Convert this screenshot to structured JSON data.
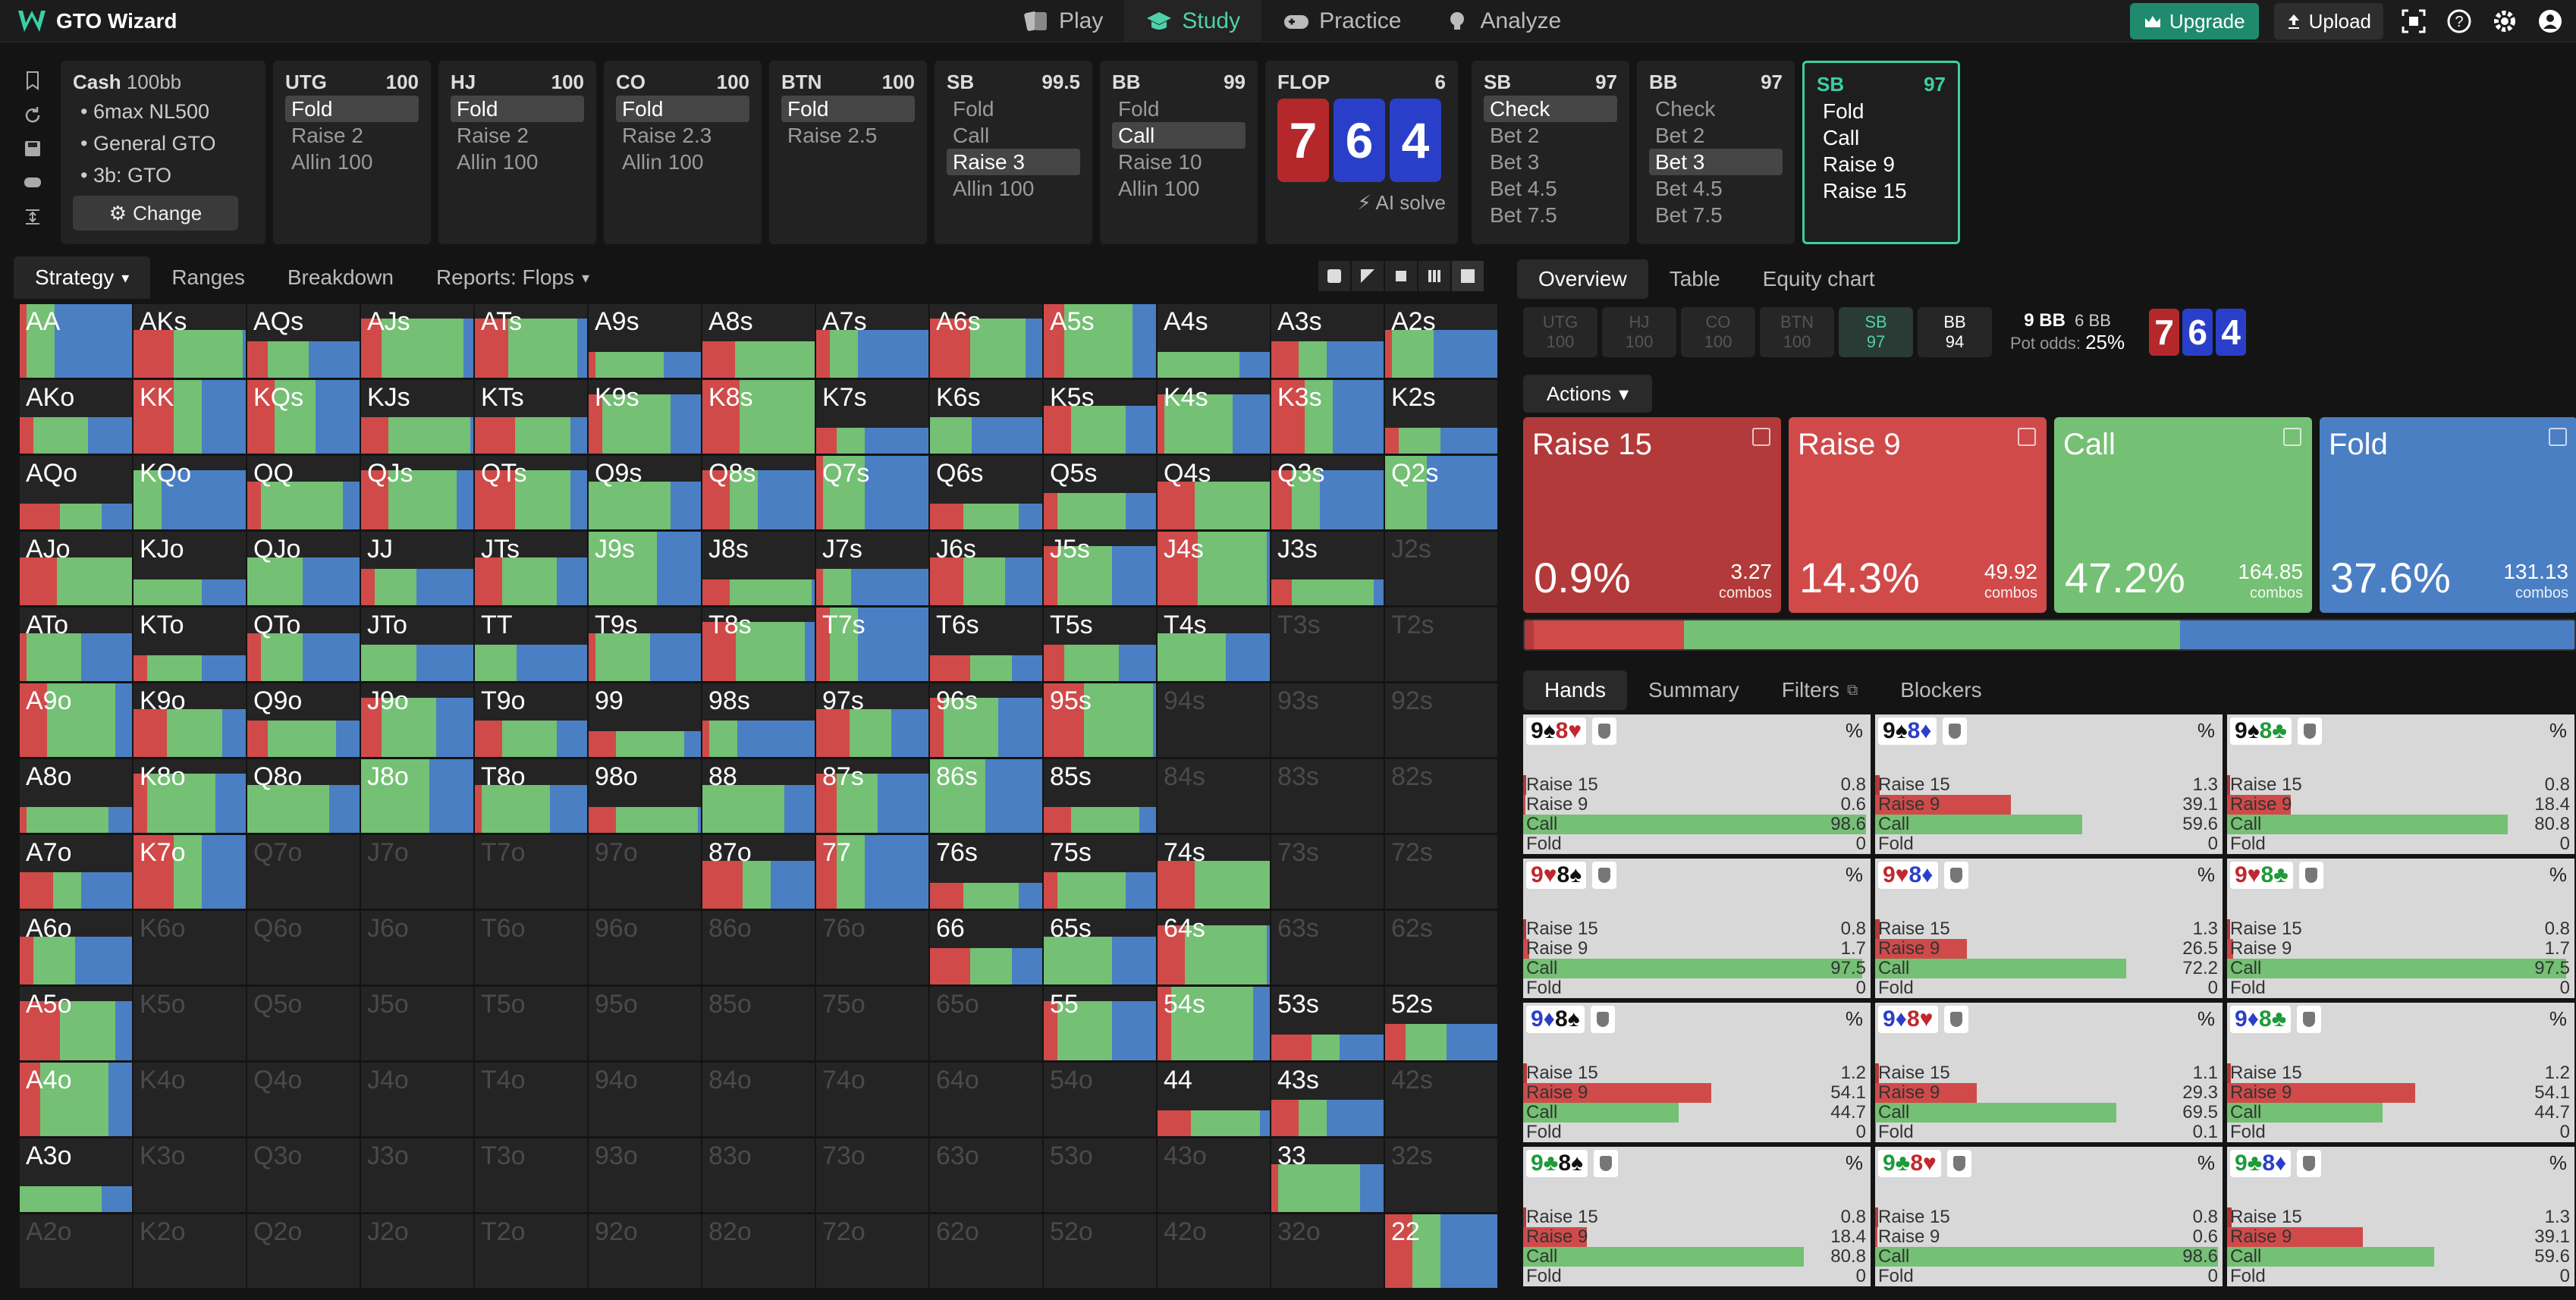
{
  "app": {
    "title": "GTO Wizard"
  },
  "nav": {
    "tabs": [
      {
        "label": "Play",
        "icon": "cards-icon"
      },
      {
        "label": "Study",
        "icon": "graduation-cap-icon"
      },
      {
        "label": "Practice",
        "icon": "gamepad-icon"
      },
      {
        "label": "Analyze",
        "icon": "lightbulb-icon"
      }
    ],
    "active": 1,
    "upgrade": "Upgrade",
    "upload": "Upload"
  },
  "colors": {
    "raise_big": "#b33a3a",
    "raise": "#d04a4a",
    "call": "#74c074",
    "fold": "#4a7fc4",
    "accent": "#3bd0a4"
  },
  "line": {
    "cash": {
      "title": "Cash",
      "stack": "100bb",
      "items": [
        "• 6max NL500",
        "• General GTO",
        "• 3b: GTO"
      ],
      "change": "Change"
    },
    "positions": [
      {
        "pos": "UTG",
        "stack": "100",
        "options": [
          "Fold",
          "Raise 2",
          "Allin 100"
        ],
        "sel": 0
      },
      {
        "pos": "HJ",
        "stack": "100",
        "options": [
          "Fold",
          "Raise 2",
          "Allin 100"
        ],
        "sel": 0
      },
      {
        "pos": "CO",
        "stack": "100",
        "options": [
          "Fold",
          "Raise 2.3",
          "Allin 100"
        ],
        "sel": 0
      },
      {
        "pos": "BTN",
        "stack": "100",
        "options": [
          "Fold",
          "Raise 2.5"
        ],
        "sel": 0
      },
      {
        "pos": "SB",
        "stack": "99.5",
        "options": [
          "Fold",
          "Call",
          "Raise 3",
          "Allin 100"
        ],
        "sel": 2
      },
      {
        "pos": "BB",
        "stack": "99",
        "options": [
          "Fold",
          "Call",
          "Raise 10",
          "Allin 100"
        ],
        "sel": 1
      }
    ],
    "flop": {
      "label": "FLOP",
      "pot": "6",
      "cards": [
        "7",
        "6",
        "4"
      ],
      "ai": "AI solve"
    },
    "post": [
      {
        "pos": "SB",
        "stack": "97",
        "options": [
          "Check",
          "Bet 2",
          "Bet 3",
          "Bet 4.5",
          "Bet 7.5"
        ],
        "sel": 0
      },
      {
        "pos": "BB",
        "stack": "97",
        "options": [
          "Check",
          "Bet 2",
          "Bet 3",
          "Bet 4.5",
          "Bet 7.5"
        ],
        "sel": 2
      },
      {
        "pos": "SB",
        "stack": "97",
        "options": [
          "Fold",
          "Call",
          "Raise 9",
          "Raise 15"
        ],
        "sel": -1
      }
    ]
  },
  "left_tabs": [
    "Strategy",
    "Ranges",
    "Breakdown",
    "Reports: Flops"
  ],
  "grid": {
    "ranks": [
      "A",
      "K",
      "Q",
      "J",
      "T",
      "9",
      "8",
      "7",
      "6",
      "5",
      "4",
      "3",
      "2"
    ],
    "off": [
      "J2s",
      "T3s",
      "T2s",
      "94s",
      "93s",
      "92s",
      "84s",
      "83s",
      "82s",
      "Q7o",
      "J7o",
      "T7o",
      "97o",
      "73s",
      "72s",
      "K6o",
      "Q6o",
      "J6o",
      "T6o",
      "96o",
      "86o",
      "76o",
      "63s",
      "62s",
      "K5o",
      "Q5o",
      "J5o",
      "T5o",
      "95o",
      "85o",
      "75o",
      "65o",
      "K4o",
      "Q4o",
      "J4o",
      "T4o",
      "94o",
      "84o",
      "74o",
      "64o",
      "54o",
      "42s",
      "K3o",
      "Q3o",
      "J3o",
      "T3o",
      "93o",
      "83o",
      "73o",
      "63o",
      "53o",
      "43o",
      "32s",
      "A2o",
      "K2o",
      "Q2o",
      "J2o",
      "T2o",
      "92o",
      "82o",
      "72o",
      "62o",
      "52o",
      "42o",
      "32o"
    ]
  },
  "right_tabs": [
    "Overview",
    "Table",
    "Equity chart"
  ],
  "posrow": [
    {
      "p": "UTG",
      "s": "100"
    },
    {
      "p": "HJ",
      "s": "100"
    },
    {
      "p": "CO",
      "s": "100"
    },
    {
      "p": "BTN",
      "s": "100"
    },
    {
      "p": "SB",
      "s": "97"
    },
    {
      "p": "BB",
      "s": "94"
    }
  ],
  "pot": {
    "pot": "9 BB",
    "bet": "6 BB",
    "odds_label": "Pot odds:",
    "odds": "25%"
  },
  "actions_label": "Actions",
  "actions": [
    {
      "name": "Raise 15",
      "pct": "0.9%",
      "combos": "3.27",
      "unit": "combos",
      "color": "#b33a3a",
      "frac": 0.009
    },
    {
      "name": "Raise 9",
      "pct": "14.3%",
      "combos": "49.92",
      "unit": "combos",
      "color": "#d04a4a",
      "frac": 0.143
    },
    {
      "name": "Call",
      "pct": "47.2%",
      "combos": "164.85",
      "unit": "combos",
      "color": "#74c074",
      "frac": 0.472
    },
    {
      "name": "Fold",
      "pct": "37.6%",
      "combos": "131.13",
      "unit": "combos",
      "color": "#4a7fc4",
      "frac": 0.376
    }
  ],
  "hand_tabs": [
    "Hands",
    "Summary",
    "Filters",
    "Blockers"
  ],
  "hands": [
    {
      "c": [
        [
          "9",
          "♠",
          "blk"
        ],
        [
          "8",
          "♥",
          "red"
        ]
      ],
      "v": [
        "0.8",
        "0.6",
        "98.6",
        "0"
      ]
    },
    {
      "c": [
        [
          "9",
          "♠",
          "blk"
        ],
        [
          "8",
          "♦",
          "blue"
        ]
      ],
      "v": [
        "1.3",
        "39.1",
        "59.6",
        "0"
      ]
    },
    {
      "c": [
        [
          "9",
          "♠",
          "blk"
        ],
        [
          "8",
          "♣",
          "grn"
        ]
      ],
      "v": [
        "0.8",
        "18.4",
        "80.8",
        "0"
      ]
    },
    {
      "c": [
        [
          "9",
          "♥",
          "red"
        ],
        [
          "8",
          "♠",
          "blk"
        ]
      ],
      "v": [
        "0.8",
        "1.7",
        "97.5",
        "0"
      ]
    },
    {
      "c": [
        [
          "9",
          "♥",
          "red"
        ],
        [
          "8",
          "♦",
          "blue"
        ]
      ],
      "v": [
        "1.3",
        "26.5",
        "72.2",
        "0"
      ]
    },
    {
      "c": [
        [
          "9",
          "♥",
          "red"
        ],
        [
          "8",
          "♣",
          "grn"
        ]
      ],
      "v": [
        "0.8",
        "1.7",
        "97.5",
        "0"
      ]
    },
    {
      "c": [
        [
          "9",
          "♦",
          "blue"
        ],
        [
          "8",
          "♠",
          "blk"
        ]
      ],
      "v": [
        "1.2",
        "54.1",
        "44.7",
        "0"
      ]
    },
    {
      "c": [
        [
          "9",
          "♦",
          "blue"
        ],
        [
          "8",
          "♥",
          "red"
        ]
      ],
      "v": [
        "1.1",
        "29.3",
        "69.5",
        "0.1"
      ]
    },
    {
      "c": [
        [
          "9",
          "♦",
          "blue"
        ],
        [
          "8",
          "♣",
          "grn"
        ]
      ],
      "v": [
        "1.2",
        "54.1",
        "44.7",
        "0"
      ]
    },
    {
      "c": [
        [
          "9",
          "♣",
          "grn"
        ],
        [
          "8",
          "♠",
          "blk"
        ]
      ],
      "v": [
        "0.8",
        "18.4",
        "80.8",
        "0"
      ]
    },
    {
      "c": [
        [
          "9",
          "♣",
          "grn"
        ],
        [
          "8",
          "♥",
          "red"
        ]
      ],
      "v": [
        "0.8",
        "0.6",
        "98.6",
        "0"
      ]
    },
    {
      "c": [
        [
          "9",
          "♣",
          "grn"
        ],
        [
          "8",
          "♦",
          "blue"
        ]
      ],
      "v": [
        "1.3",
        "39.1",
        "59.6",
        "0"
      ]
    }
  ],
  "hand_rows": [
    "Raise 15",
    "Raise 9",
    "Call",
    "Fold"
  ]
}
